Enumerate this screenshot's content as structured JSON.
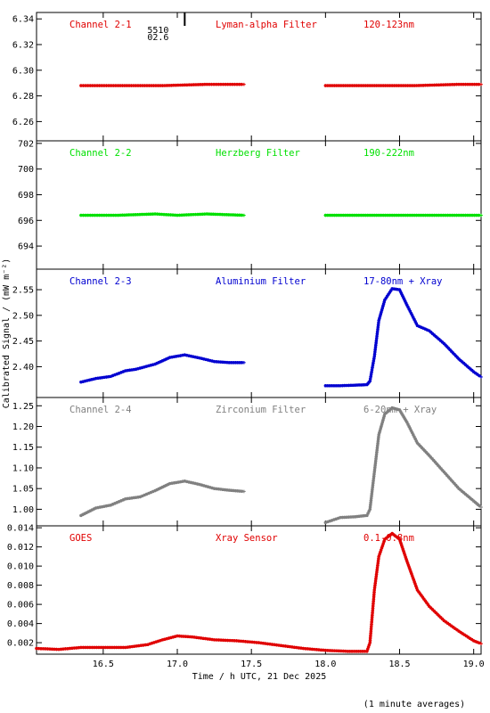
{
  "figure": {
    "ylabel": "Calibrated Signal / (mW m⁻²)",
    "xlabel": "Time / h UTC, 21 Dec 2025",
    "footnote": "(1 minute averages)",
    "xlim": [
      16.05,
      19.05
    ],
    "x_ticks": [
      16.5,
      17.0,
      17.5,
      18.0,
      18.5,
      19.0
    ],
    "x_tick_labels": [
      "16.5",
      "17.0",
      "17.5",
      "18.0",
      "18.5",
      "19.0"
    ],
    "top_annotation": {
      "line1": "5510",
      "line2": "02.6",
      "x": 17.05
    }
  },
  "chart_data": [
    {
      "type": "scatter",
      "labels": [
        "Channel 2-1",
        "Lyman-alpha Filter",
        "120-123nm"
      ],
      "color": "#e00000",
      "ylim": [
        6.245,
        6.345
      ],
      "y_ticks": [
        6.26,
        6.28,
        6.3,
        6.32,
        6.34
      ],
      "y_tick_labels": [
        "6.26",
        "6.28",
        "6.30",
        "6.32",
        "6.34"
      ],
      "segments": [
        {
          "x": [
            16.35,
            16.6,
            16.9,
            17.2,
            17.45
          ],
          "y": [
            6.288,
            6.288,
            6.288,
            6.289,
            6.289
          ]
        },
        {
          "x": [
            18.0,
            18.3,
            18.6,
            18.9,
            19.05
          ],
          "y": [
            6.288,
            6.288,
            6.288,
            6.289,
            6.289
          ]
        }
      ]
    },
    {
      "type": "scatter",
      "labels": [
        "Channel 2-2",
        "Herzberg Filter",
        "190-222nm"
      ],
      "color": "#00e000",
      "ylim": [
        692.2,
        702.2
      ],
      "y_ticks": [
        694,
        696,
        698,
        700,
        702
      ],
      "y_tick_labels": [
        "694",
        "696",
        "698",
        "700",
        "702"
      ],
      "segments": [
        {
          "x": [
            16.35,
            16.6,
            16.85,
            17.0,
            17.2,
            17.45
          ],
          "y": [
            696.4,
            696.4,
            696.5,
            696.4,
            696.5,
            696.4
          ]
        },
        {
          "x": [
            18.0,
            18.3,
            18.6,
            18.9,
            19.05
          ],
          "y": [
            696.4,
            696.4,
            696.4,
            696.4,
            696.4
          ]
        }
      ]
    },
    {
      "type": "scatter",
      "labels": [
        "Channel 2-3",
        "Aluminium Filter",
        "17-80nm + Xray"
      ],
      "color": "#0000d0",
      "ylim": [
        2.34,
        2.59
      ],
      "y_ticks": [
        2.4,
        2.45,
        2.5,
        2.55
      ],
      "y_tick_labels": [
        "2.40",
        "2.45",
        "2.50",
        "2.55"
      ],
      "segments": [
        {
          "x": [
            16.35,
            16.45,
            16.55,
            16.65,
            16.72,
            16.85,
            16.95,
            17.05,
            17.15,
            17.25,
            17.35,
            17.45
          ],
          "y": [
            2.37,
            2.377,
            2.381,
            2.392,
            2.395,
            2.405,
            2.418,
            2.423,
            2.417,
            2.41,
            2.408,
            2.408
          ]
        },
        {
          "x": [
            18.0,
            18.1,
            18.2,
            18.28,
            18.3,
            18.33,
            18.36,
            18.4,
            18.45,
            18.5,
            18.55,
            18.62,
            18.7,
            18.8,
            18.9,
            19.0,
            19.05
          ],
          "y": [
            2.363,
            2.363,
            2.364,
            2.365,
            2.372,
            2.42,
            2.49,
            2.53,
            2.552,
            2.55,
            2.52,
            2.48,
            2.47,
            2.445,
            2.415,
            2.39,
            2.38
          ]
        }
      ]
    },
    {
      "type": "scatter",
      "labels": [
        "Channel 2-4",
        "Zirconium Filter",
        "6-20nm + Xray"
      ],
      "color": "#808080",
      "ylim": [
        0.96,
        1.27
      ],
      "y_ticks": [
        1.0,
        1.05,
        1.1,
        1.15,
        1.2,
        1.25
      ],
      "y_tick_labels": [
        "1.00",
        "1.05",
        "1.10",
        "1.15",
        "1.20",
        "1.25"
      ],
      "segments": [
        {
          "x": [
            16.35,
            16.45,
            16.55,
            16.65,
            16.75,
            16.85,
            16.95,
            17.05,
            17.15,
            17.25,
            17.35,
            17.45
          ],
          "y": [
            0.985,
            1.003,
            1.01,
            1.025,
            1.03,
            1.045,
            1.062,
            1.068,
            1.06,
            1.05,
            1.046,
            1.043
          ]
        },
        {
          "x": [
            18.0,
            18.1,
            18.2,
            18.28,
            18.3,
            18.33,
            18.36,
            18.4,
            18.45,
            18.5,
            18.55,
            18.62,
            18.7,
            18.8,
            18.9,
            19.0,
            19.05
          ],
          "y": [
            0.968,
            0.98,
            0.982,
            0.985,
            1.0,
            1.09,
            1.18,
            1.23,
            1.245,
            1.24,
            1.21,
            1.16,
            1.13,
            1.09,
            1.05,
            1.02,
            1.005
          ]
        }
      ]
    },
    {
      "type": "scatter",
      "labels": [
        "GOES",
        "Xray Sensor",
        "0.1-0.8nm"
      ],
      "color": "#e00000",
      "ylim": [
        0.0008,
        0.0142
      ],
      "y_ticks": [
        0.002,
        0.004,
        0.006,
        0.008,
        0.01,
        0.012,
        0.014
      ],
      "y_tick_labels": [
        "0.002",
        "0.004",
        "0.006",
        "0.008",
        "0.010",
        "0.012",
        "0.014"
      ],
      "segments": [
        {
          "x": [
            16.05,
            16.2,
            16.35,
            16.5,
            16.65,
            16.8,
            16.9,
            17.0,
            17.1,
            17.25,
            17.4,
            17.55,
            17.7,
            17.85,
            18.0,
            18.15,
            18.28,
            18.3,
            18.33,
            18.36,
            18.4,
            18.45,
            18.5,
            18.55,
            18.62,
            18.7,
            18.8,
            18.9,
            19.0,
            19.05
          ],
          "y": [
            0.0014,
            0.0013,
            0.0015,
            0.0015,
            0.0015,
            0.0018,
            0.0023,
            0.0027,
            0.0026,
            0.0023,
            0.0022,
            0.002,
            0.0017,
            0.0014,
            0.0012,
            0.0011,
            0.0011,
            0.002,
            0.0075,
            0.011,
            0.0128,
            0.0134,
            0.0128,
            0.0105,
            0.0075,
            0.0058,
            0.0043,
            0.0032,
            0.0022,
            0.0019
          ]
        }
      ]
    }
  ]
}
